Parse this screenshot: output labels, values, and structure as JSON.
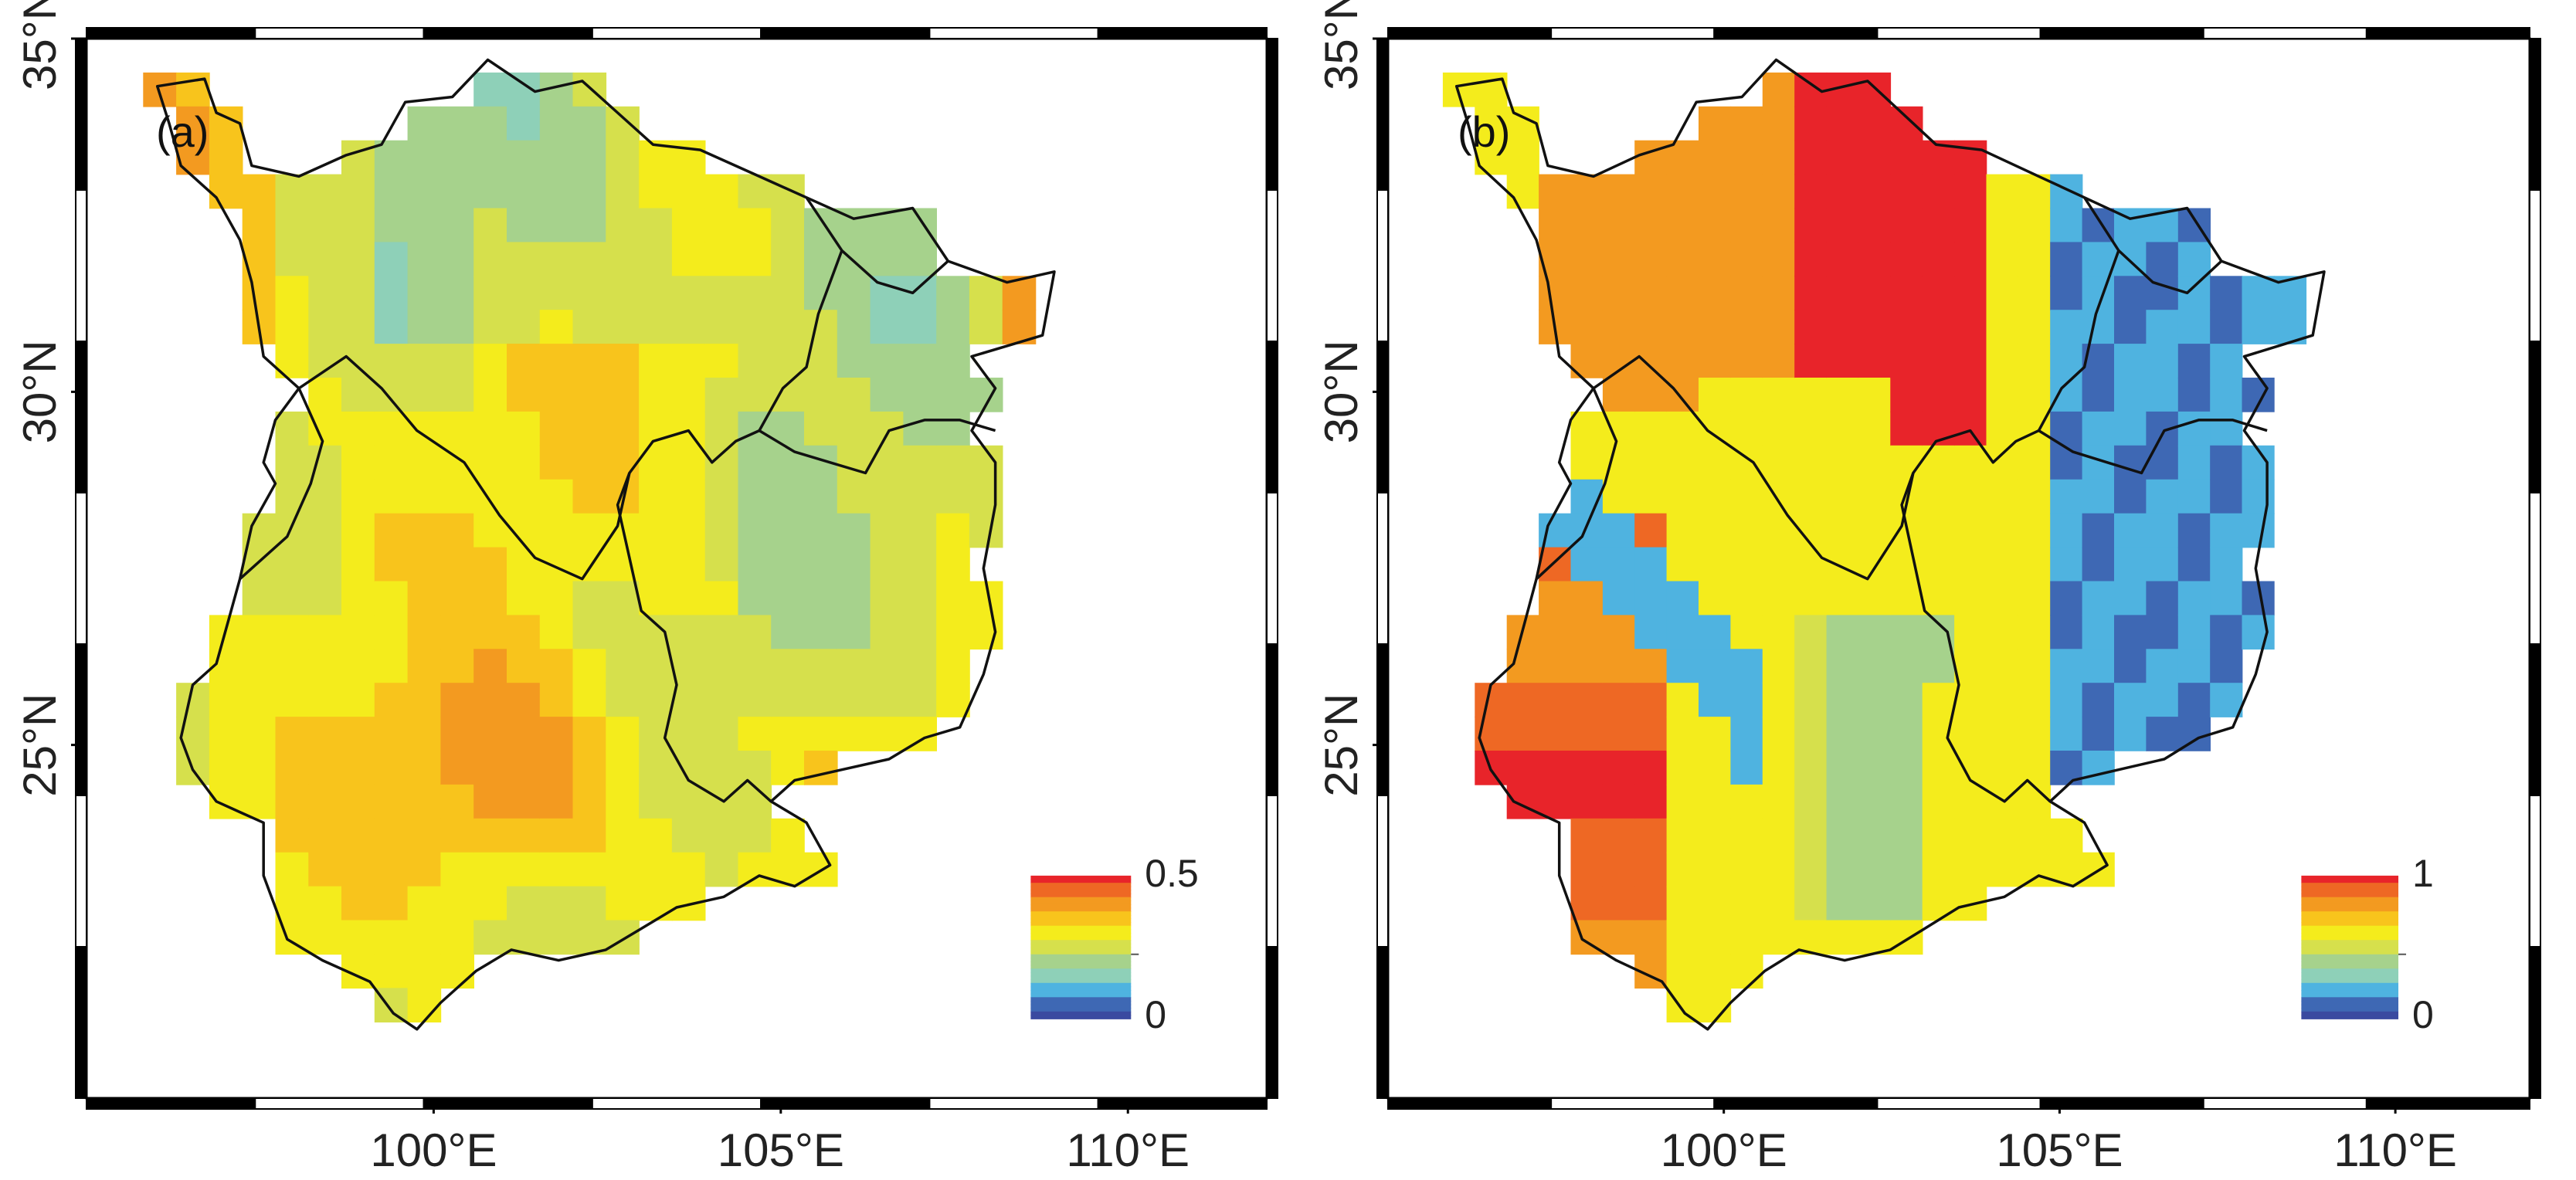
{
  "figure": {
    "panels": [
      {
        "id": "a",
        "label": "(a)",
        "x_ticks": [
          "100°E",
          "105°E",
          "110°E"
        ],
        "y_ticks": [
          "35°N",
          "30°N",
          "25°N"
        ],
        "x_tick_values": [
          100,
          105,
          110
        ],
        "y_tick_values": [
          35,
          30,
          25
        ],
        "lon_range": [
          95,
          112
        ],
        "lat_range": [
          20,
          35
        ],
        "colorbar": {
          "min": 0,
          "max": 0.5,
          "labels": [
            "0.5",
            "0"
          ]
        },
        "value_note": "field values mostly 0.2–0.35, highest (~0.4–0.45) in south-central Yunnan and at the far eastern tip",
        "map": "southwest China provinces (Sichuan, Chongqing, Guizhou, Yunnan) gridded field"
      },
      {
        "id": "b",
        "label": "(b)",
        "x_ticks": [
          "100°E",
          "105°E",
          "110°E"
        ],
        "y_ticks": [
          "35°N",
          "30°N",
          "25°N"
        ],
        "x_tick_values": [
          100,
          105,
          110
        ],
        "y_tick_values": [
          35,
          30,
          25
        ],
        "lon_range": [
          95,
          112
        ],
        "lat_range": [
          20,
          35
        ],
        "colorbar": {
          "min": 0,
          "max": 1,
          "labels": [
            "1",
            "0"
          ]
        },
        "value_note": "high values (~0.8–1) in north-central Sichuan and western Yunnan, low values (~0–0.2) in Chongqing and eastern Guizhou",
        "map": "southwest China provinces (Sichuan, Chongqing, Guizhou, Yunnan) gridded field"
      }
    ],
    "colormap": [
      "#3a4aa0",
      "#3e68b4",
      "#4fb3e0",
      "#8ed0b8",
      "#a6d28c",
      "#d6e04c",
      "#f4ec1c",
      "#f8c41c",
      "#f39a20",
      "#ee6824",
      "#e8242a"
    ]
  }
}
